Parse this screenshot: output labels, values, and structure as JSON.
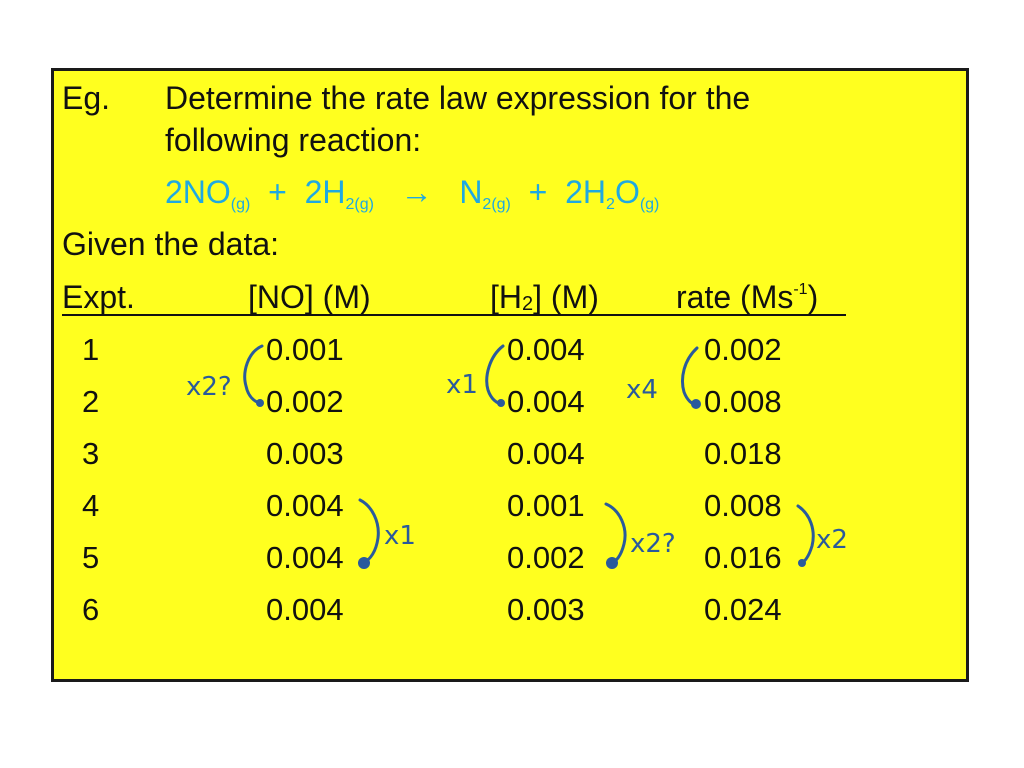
{
  "slide": {
    "eg_label": "Eg.",
    "prompt_line1": "Determine the rate law expression for the",
    "prompt_line2": "following reaction:",
    "equation": {
      "reactant1": "2NO",
      "reactant1_state": "(g)",
      "plus1": "+",
      "reactant2": "2H",
      "reactant2_sub": "2(g)",
      "arrow": "→",
      "product1": "N",
      "product1_sub": "2(g)",
      "plus2": "+",
      "product2_a": "2H",
      "product2_sub": "2",
      "product2_b": "O",
      "product2_state": "(g)"
    },
    "given": "Given the data:",
    "headers": {
      "expt": "Expt.",
      "no": "[NO] (M)",
      "h2_open": "[H",
      "h2_sub": "2",
      "h2_close": "] (M)",
      "rate_open": "rate (Ms",
      "rate_sup": "-1",
      "rate_close": ")"
    },
    "rows": [
      {
        "expt": "1",
        "no": "0.001",
        "h2": "0.004",
        "rate": "0.002"
      },
      {
        "expt": "2",
        "no": "0.002",
        "h2": "0.004",
        "rate": "0.008"
      },
      {
        "expt": "3",
        "no": "0.003",
        "h2": "0.004",
        "rate": "0.018"
      },
      {
        "expt": "4",
        "no": "0.004",
        "h2": "0.001",
        "rate": "0.008"
      },
      {
        "expt": "5",
        "no": "0.004",
        "h2": "0.002",
        "rate": "0.016"
      },
      {
        "expt": "6",
        "no": "0.004",
        "h2": "0.003",
        "rate": "0.024"
      }
    ],
    "annotations": {
      "no_1_2": "x2?",
      "h2_1_2": "x1",
      "rate_1_2": "x4",
      "no_4_5": "x1",
      "h2_4_5": "x2?",
      "rate_4_5": "x2"
    },
    "colors": {
      "background": "#ffff1f",
      "equation": "#1fa9e1",
      "ink": "#2a5a9c"
    }
  }
}
